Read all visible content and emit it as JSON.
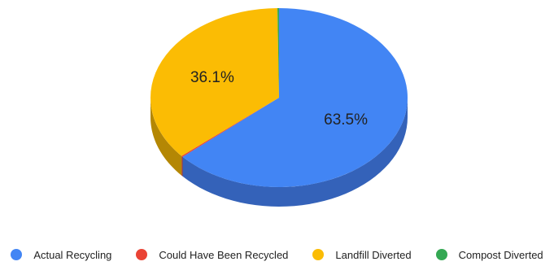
{
  "chart_data": {
    "type": "pie",
    "title": "",
    "is_3d": true,
    "legend_position": "bottom",
    "slices": [
      {
        "name": "Actual Recycling",
        "value": 63.5,
        "label": "63.5%",
        "color": "#4285f4",
        "side_color": "#3462b9"
      },
      {
        "name": "Could Have Been Recycled",
        "value": 0.2,
        "label": "",
        "color": "#ea4335",
        "side_color": "#a93226"
      },
      {
        "name": "Landfill Diverted",
        "value": 36.1,
        "label": "36.1%",
        "color": "#fbbc04",
        "side_color": "#b48704"
      },
      {
        "name": "Compost Diverted",
        "value": 0.2,
        "label": "",
        "color": "#34a853",
        "side_color": "#247a3b"
      }
    ]
  }
}
